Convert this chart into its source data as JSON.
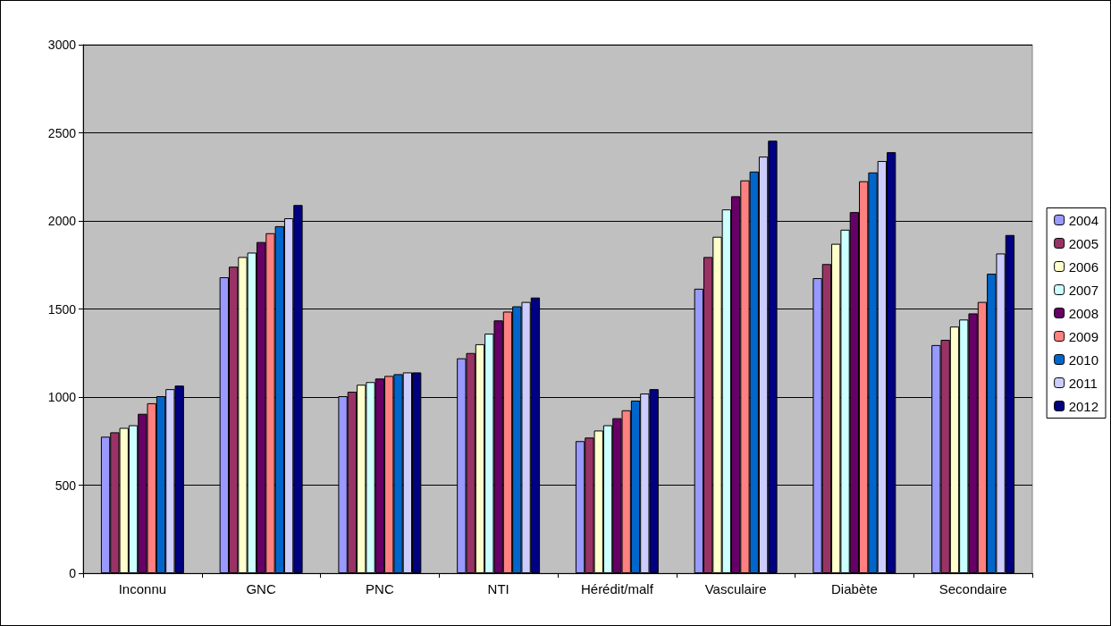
{
  "chart_data": {
    "type": "bar",
    "categories": [
      "Inconnu",
      "GNC",
      "PNC",
      "NTI",
      "Hérédit/malf",
      "Vasculaire",
      "Diabète",
      "Secondaire"
    ],
    "series": [
      {
        "name": "2004",
        "color": "#9999ff",
        "values": [
          775,
          1680,
          1005,
          1220,
          750,
          1615,
          1675,
          1295
        ]
      },
      {
        "name": "2005",
        "color": "#993366",
        "values": [
          800,
          1740,
          1030,
          1250,
          770,
          1795,
          1755,
          1325
        ]
      },
      {
        "name": "2006",
        "color": "#ffffcc",
        "values": [
          825,
          1795,
          1070,
          1300,
          810,
          1910,
          1870,
          1400
        ]
      },
      {
        "name": "2007",
        "color": "#ccffff",
        "values": [
          840,
          1820,
          1085,
          1360,
          840,
          2065,
          1950,
          1440
        ]
      },
      {
        "name": "2008",
        "color": "#660066",
        "values": [
          905,
          1880,
          1105,
          1435,
          880,
          2140,
          2050,
          1475
        ]
      },
      {
        "name": "2009",
        "color": "#ff8080",
        "values": [
          965,
          1930,
          1120,
          1485,
          925,
          2230,
          2225,
          1540
        ]
      },
      {
        "name": "2010",
        "color": "#0066cc",
        "values": [
          1005,
          1970,
          1130,
          1515,
          980,
          2280,
          2275,
          1700
        ]
      },
      {
        "name": "2011",
        "color": "#ccccff",
        "values": [
          1045,
          2015,
          1140,
          1540,
          1020,
          2365,
          2340,
          1815
        ]
      },
      {
        "name": "2012",
        "color": "#000080",
        "values": [
          1065,
          2090,
          1140,
          1565,
          1045,
          2455,
          2390,
          1920
        ]
      }
    ],
    "ylim": [
      0,
      3000
    ],
    "yticks": [
      0,
      500,
      1000,
      1500,
      2000,
      2500,
      3000
    ],
    "grid": "y",
    "legend": "right"
  }
}
